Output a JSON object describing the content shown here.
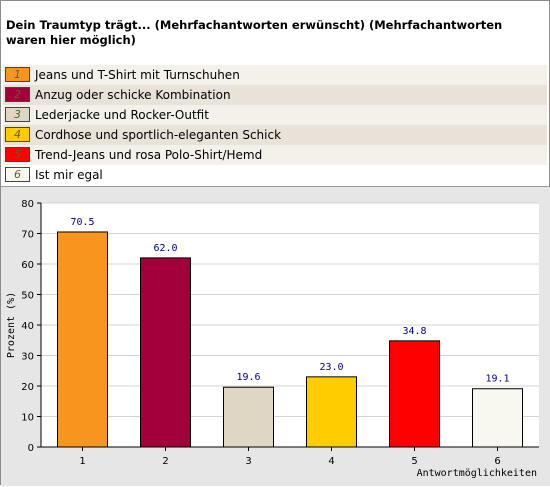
{
  "title": "Dein Traumtyp trägt... (Mehrfachantworten erwünscht) (Mehrfachantworten waren hier möglich)",
  "legend": [
    {
      "num": "1",
      "label": "Jeans und T-Shirt mit Turnschuhen",
      "color": "#f7961e"
    },
    {
      "num": "2",
      "label": "Anzug oder schicke Kombination",
      "color": "#a1003a"
    },
    {
      "num": "3",
      "label": "Lederjacke und Rocker-Outfit",
      "color": "#e0d6c4"
    },
    {
      "num": "4",
      "label": "Cordhose und sportlich-eleganten Schick",
      "color": "#ffcc00"
    },
    {
      "num": "5",
      "label": "Trend-Jeans und rosa Polo-Shirt/Hemd",
      "color": "#ff0000"
    },
    {
      "num": "6",
      "label": "Ist mir egal",
      "color": "#f8f8f0"
    }
  ],
  "chart_data": {
    "type": "bar",
    "categories": [
      "1",
      "2",
      "3",
      "4",
      "5",
      "6"
    ],
    "values": [
      70.5,
      62.0,
      19.6,
      23.0,
      34.8,
      19.1
    ],
    "value_labels": [
      "70.5",
      "62.0",
      "19.6",
      "23.0",
      "34.8",
      "19.1"
    ],
    "colors": [
      "#f7961e",
      "#a1003a",
      "#e0d6c4",
      "#ffcc00",
      "#ff0000",
      "#f8f8f0"
    ],
    "xlabel": "Antwortmöglichkeiten",
    "ylabel": "Prozent (%)",
    "ylim": [
      0,
      80
    ],
    "yticks": [
      0,
      10,
      20,
      30,
      40,
      50,
      60,
      70,
      80
    ],
    "grid": true
  }
}
